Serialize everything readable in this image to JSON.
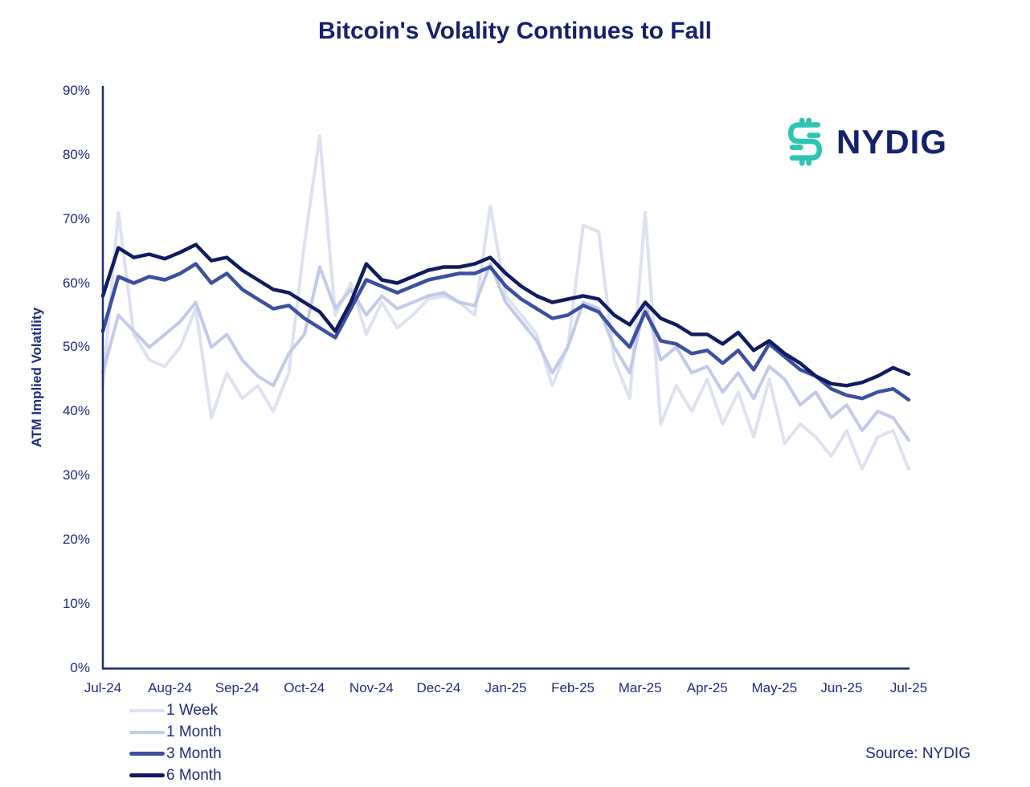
{
  "title": "Bitcoin's Volality Continues to Fall",
  "logo": {
    "text": "NYDIG"
  },
  "source": "Source: NYDIG",
  "colors": {
    "navy_title": "#16206d",
    "navy_text": "#1f2b7e",
    "axis_line": "#1b2a78",
    "logo_teal": "#2cc5b2"
  },
  "chart_data": {
    "type": "line",
    "title": "Bitcoin's Volality Continues to Fall",
    "xlabel": "",
    "ylabel": "ATM Implied Volatility",
    "ylim": [
      0,
      90
    ],
    "grid": false,
    "legend_position": "bottom-left",
    "y_tick_labels": [
      "0%",
      "10%",
      "20%",
      "30%",
      "40%",
      "50%",
      "60%",
      "70%",
      "80%",
      "90%"
    ],
    "x_tick_labels": [
      "Jul-24",
      "Aug-24",
      "Sep-24",
      "Oct-24",
      "Nov-24",
      "Dec-24",
      "Jan-25",
      "Feb-25",
      "Mar-25",
      "Apr-25",
      "May-25",
      "Jun-25",
      "Jul-25"
    ],
    "x_range": [
      "Jul-24",
      "Jul-25"
    ],
    "x_sampling": "weekly, 53 points from Jul-24 to Jul-25, values in percent",
    "series": [
      {
        "name": "1 Week",
        "color": "#dee1f0",
        "values": [
          44,
          71,
          52,
          48,
          47,
          50,
          56,
          39,
          46,
          42,
          44,
          40,
          46,
          66,
          83,
          55,
          60,
          52,
          57,
          53,
          55,
          57.5,
          58,
          57,
          55,
          72,
          58,
          55,
          52,
          44,
          50,
          69,
          68,
          48,
          42,
          71,
          38,
          44,
          40,
          45,
          38,
          43,
          36,
          45,
          35,
          38,
          36,
          33,
          37,
          31,
          36,
          37,
          31
        ]
      },
      {
        "name": "1 Month",
        "color": "#c3cae9",
        "values": [
          46,
          55,
          52.5,
          50,
          52,
          54,
          57,
          50,
          52,
          48,
          45.5,
          44,
          49,
          52,
          62.5,
          56,
          59,
          55,
          58,
          56,
          57,
          58,
          58.5,
          57,
          56.5,
          63,
          57,
          54,
          51,
          46,
          50,
          57,
          56,
          50,
          46,
          57,
          48,
          50,
          46,
          47,
          43,
          46,
          42,
          47,
          45,
          41,
          43,
          39,
          41,
          37,
          40,
          39,
          35.5
        ]
      },
      {
        "name": "3 Month",
        "color": "#3c50a0",
        "values": [
          52.5,
          61,
          60,
          61,
          60.5,
          61.5,
          63,
          60,
          61.5,
          59,
          57.5,
          56,
          56.5,
          54.5,
          53,
          51.5,
          56,
          60.5,
          59.5,
          58.5,
          59.5,
          60.5,
          61,
          61.5,
          61.5,
          62.5,
          59.5,
          57.5,
          56,
          54.5,
          55,
          56.5,
          55.5,
          52.5,
          50,
          55.5,
          51,
          50.5,
          49,
          49.5,
          47.5,
          49.5,
          46.5,
          50.5,
          48.5,
          46.5,
          45.5,
          43.5,
          42.5,
          42,
          43,
          43.5,
          41.8
        ]
      },
      {
        "name": "6 Month",
        "color": "#101b60",
        "values": [
          58,
          65.5,
          64,
          64.5,
          63.8,
          64.8,
          66,
          63.5,
          64,
          62,
          60.5,
          59,
          58.5,
          57,
          55.5,
          52.5,
          57,
          63,
          60.5,
          60,
          61,
          62,
          62.5,
          62.5,
          63,
          64,
          61.5,
          59.5,
          58,
          57,
          57.5,
          58,
          57.5,
          55,
          53.5,
          57,
          54.5,
          53.5,
          52,
          52,
          50.5,
          52.3,
          49.5,
          51,
          49,
          47.5,
          45.5,
          44.3,
          44,
          44.5,
          45.5,
          46.8,
          45.8
        ]
      }
    ]
  }
}
